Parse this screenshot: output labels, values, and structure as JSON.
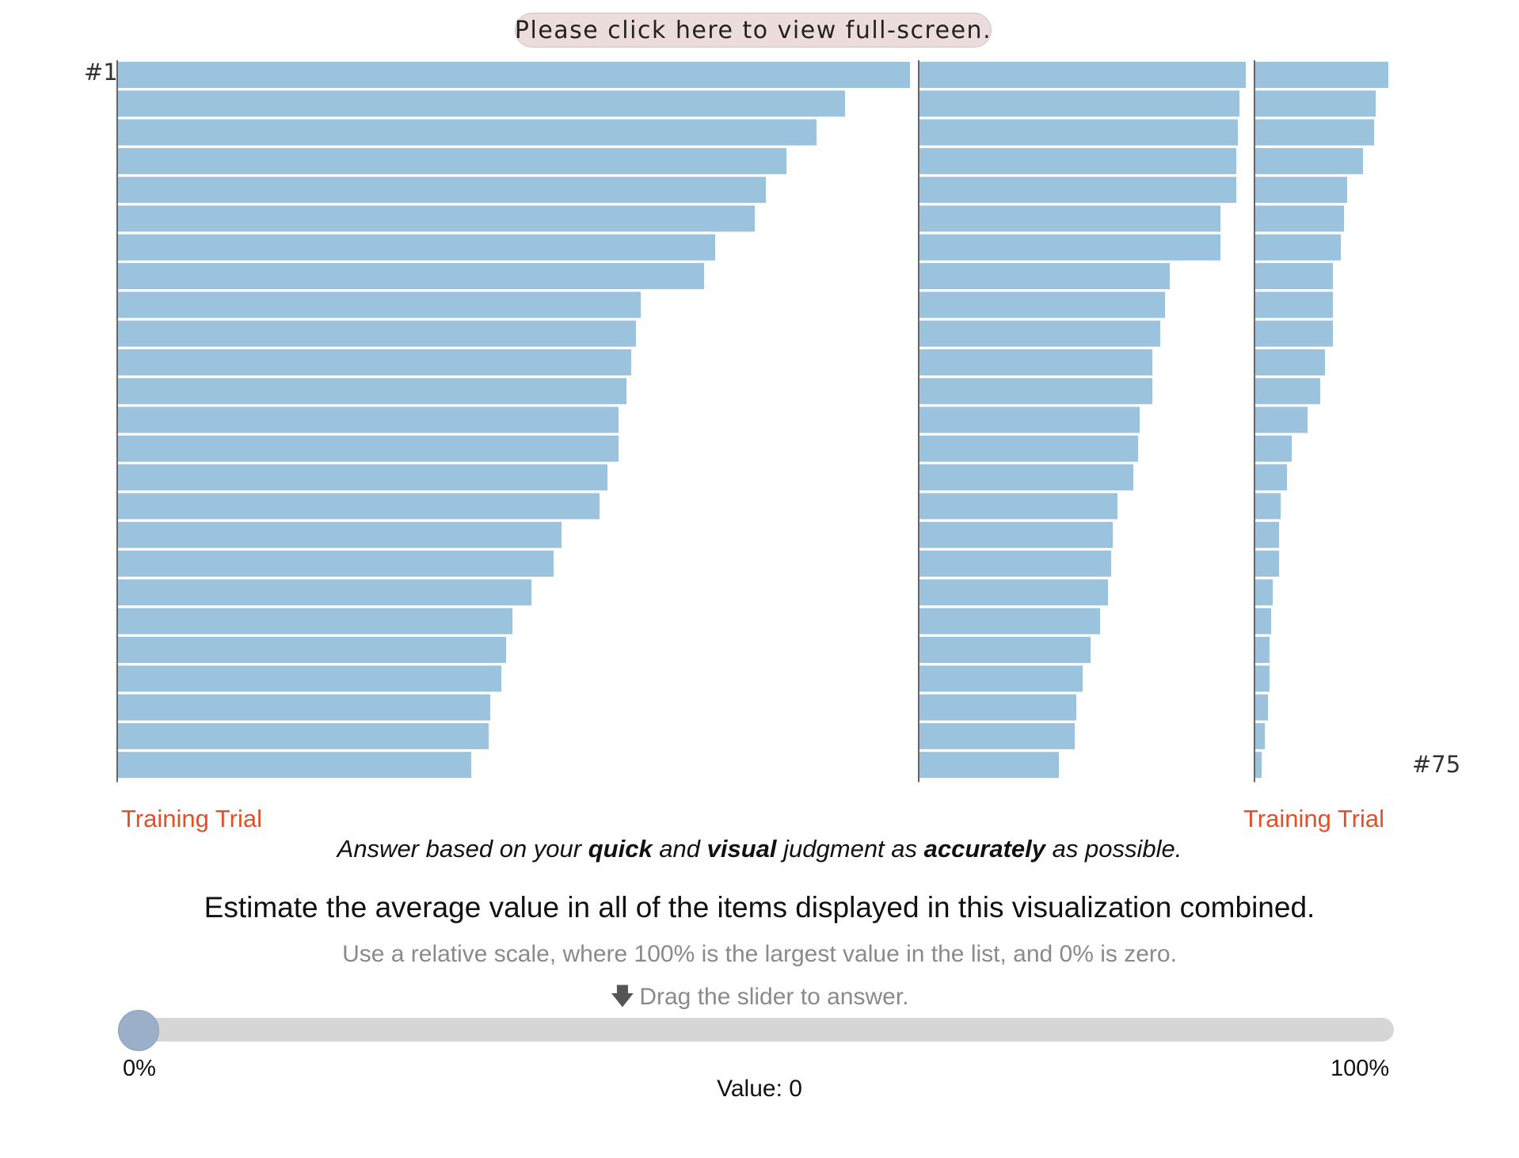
{
  "fullscreen_label": "Please click here to view full-screen.",
  "rank_first": "#1",
  "rank_last": "#75",
  "training_label": "Training Trial",
  "instruction": {
    "part1": "Answer based on your ",
    "bold1": "quick",
    "part2": " and ",
    "bold2": "visual",
    "part3": " judgment as ",
    "bold3": "accurately",
    "part4": " as possible."
  },
  "question": "Estimate the average value in all of the items displayed in this visualization combined.",
  "hint": "Use a relative scale, where 100% is the largest value in the list, and 0% is zero.",
  "drag_hint": "Drag the slider to answer.",
  "drag_icon": "arrow-down-icon",
  "slider": {
    "min_label": "0%",
    "max_label": "100%",
    "value_label": "Value: 0",
    "value": 0
  },
  "colors": {
    "bar": "#9cc3de",
    "training": "#e0512b",
    "slider_track": "#d6d6d6",
    "slider_handle": "#9bb0c8"
  },
  "chart_data": {
    "type": "bar",
    "orientation": "horizontal",
    "layout": "wrapped columns of 25 bars, ranked descending",
    "rank_range": [
      1,
      75
    ],
    "xlim": [
      0,
      100
    ],
    "columns": [
      {
        "ranks": [
          1,
          25
        ],
        "values": [
          100,
          91.8,
          88.2,
          84.4,
          81.8,
          80.4,
          75.4,
          74,
          66,
          65.4,
          64.8,
          64.2,
          63.2,
          63.2,
          61.8,
          60.8,
          56,
          55,
          52.2,
          49.8,
          49,
          48.4,
          47,
          46.8,
          44.6
        ]
      },
      {
        "ranks": [
          26,
          50
        ],
        "values": [
          41.2,
          40.4,
          40.2,
          40,
          40,
          38,
          38,
          31.6,
          31,
          30.4,
          29.4,
          29.4,
          27.8,
          27.6,
          27,
          25,
          24.4,
          24.2,
          23.8,
          22.8,
          21.6,
          20.6,
          19.8,
          19.6,
          17.6
        ]
      },
      {
        "ranks": [
          51,
          75
        ],
        "values": [
          16.8,
          15.2,
          15,
          13.6,
          11.6,
          11.2,
          10.8,
          9.8,
          9.8,
          9.8,
          8.8,
          8.2,
          6.6,
          4.6,
          4,
          3.2,
          3,
          3,
          2.2,
          2,
          1.8,
          1.8,
          1.6,
          1.2,
          0.8
        ]
      }
    ]
  }
}
